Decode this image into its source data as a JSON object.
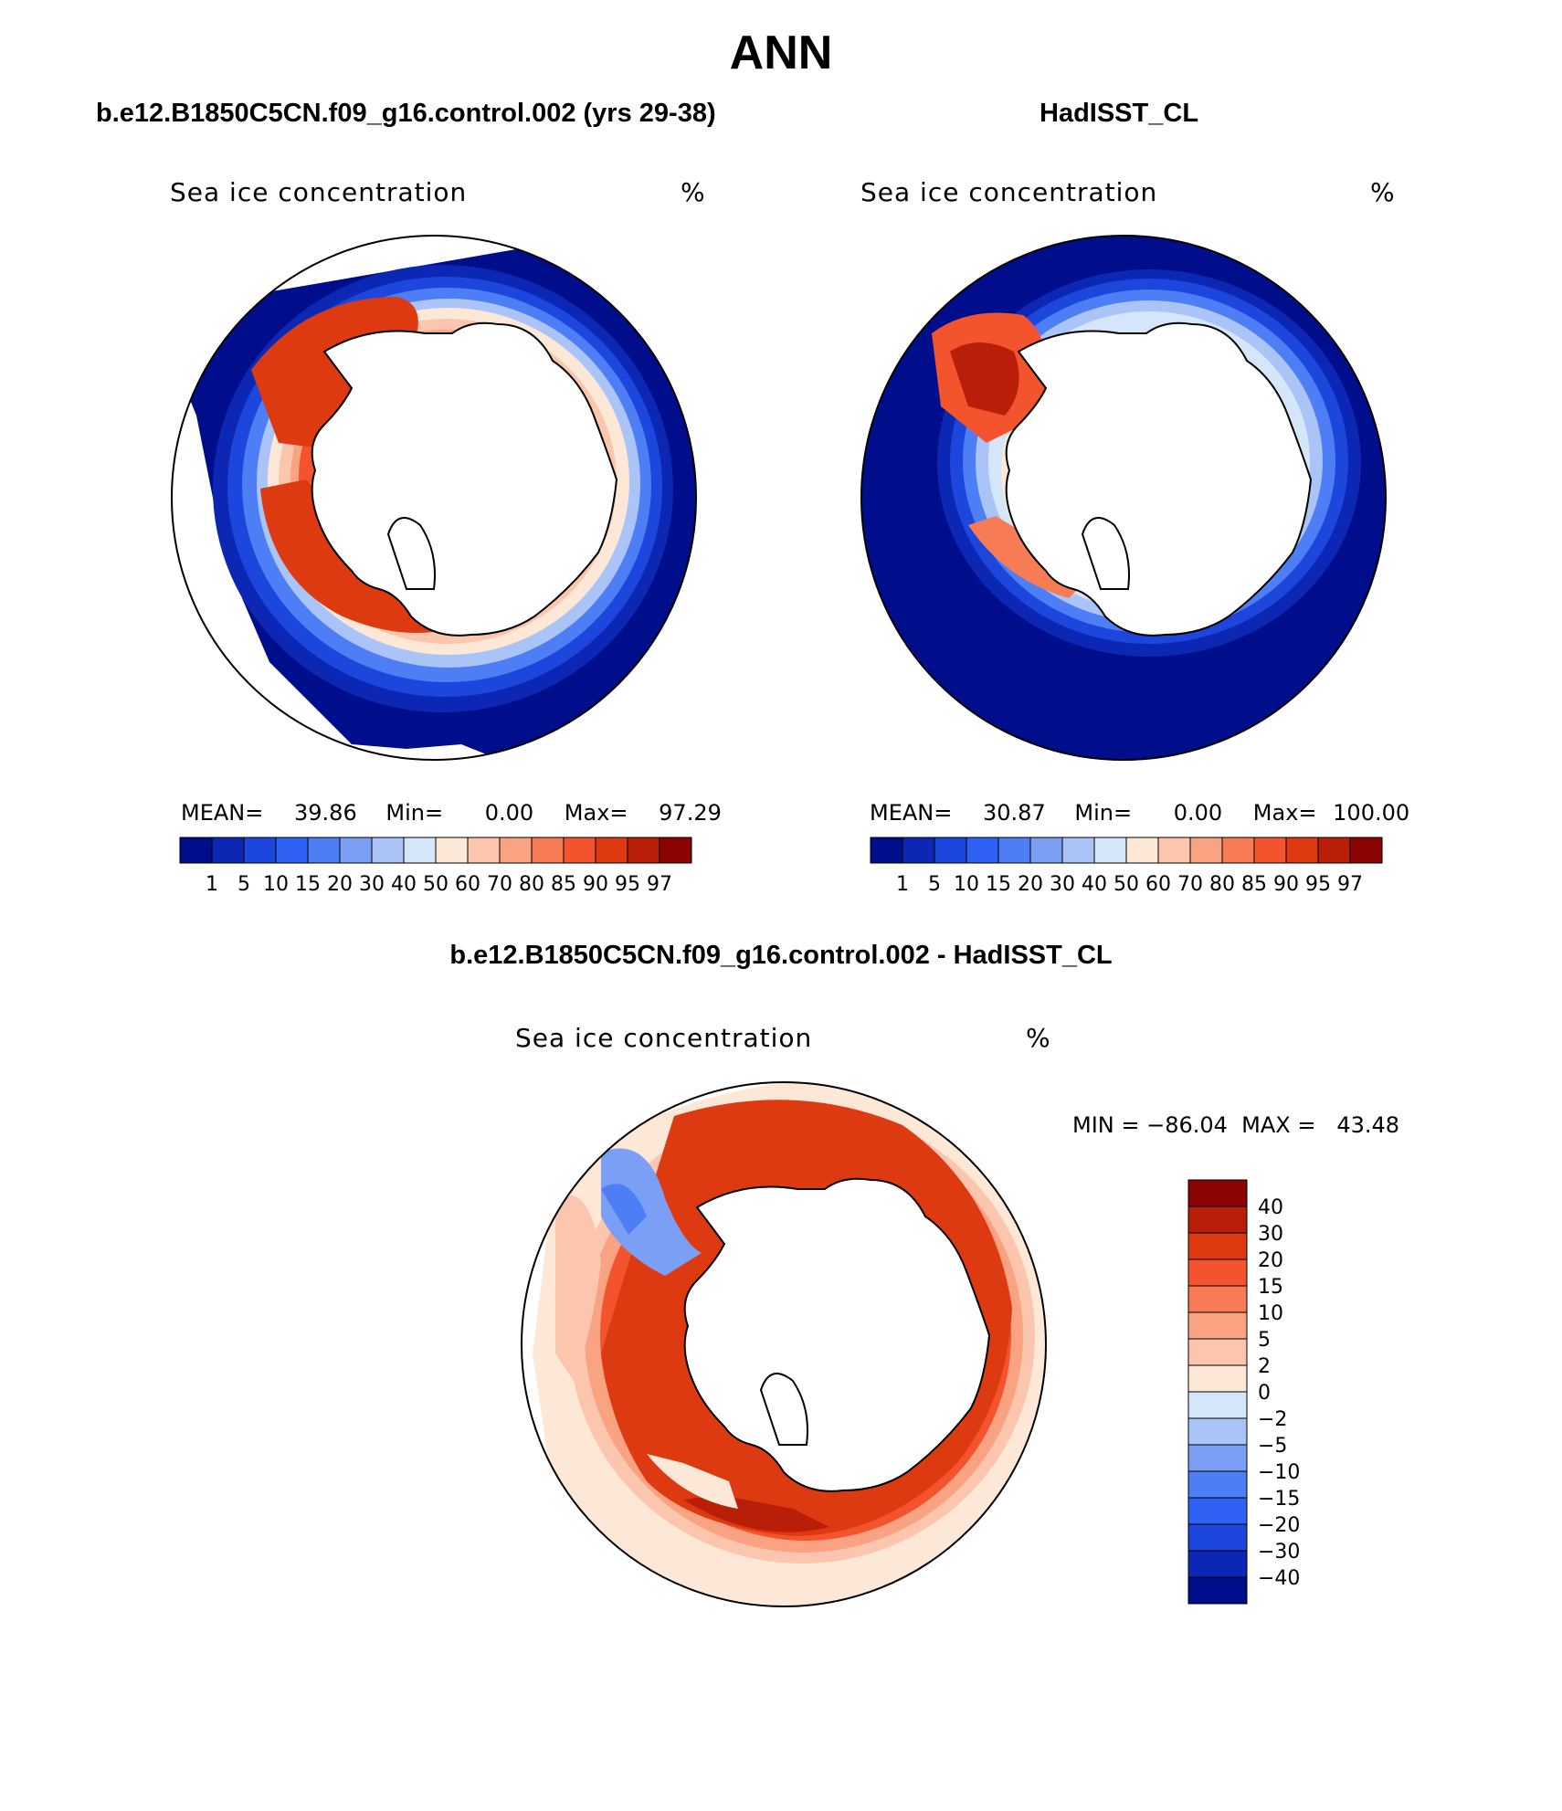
{
  "title": "ANN",
  "panels": [
    {
      "title": "b.e12.B1850C5CN.f09_g16.control.002 (yrs 29-38)",
      "variable": "Sea ice concentration",
      "units": "%",
      "stats": {
        "mean_label": "MEAN=",
        "mean": "39.86",
        "min_label": "Min=",
        "min": "0.00",
        "max_label": "Max=",
        "max": "97.29"
      }
    },
    {
      "title": "HadISST_CL",
      "variable": "Sea ice concentration",
      "units": "%",
      "stats": {
        "mean_label": "MEAN=",
        "mean": "30.87",
        "min_label": "Min=",
        "min": "0.00",
        "max_label": "Max=",
        "max": "100.00"
      }
    }
  ],
  "colorbar_abs": {
    "labels": [
      "1",
      "5",
      "10",
      "15",
      "20",
      "30",
      "40",
      "50",
      "60",
      "70",
      "80",
      "85",
      "90",
      "95",
      "97"
    ],
    "colors": [
      "#000e8c",
      "#0b27b4",
      "#1c46dc",
      "#2f62f4",
      "#4e7ef5",
      "#7c9ff6",
      "#abc4f8",
      "#d6e6fa",
      "#fde7d6",
      "#fbc6ad",
      "#f9a383",
      "#f77c55",
      "#f4542d",
      "#de3a12",
      "#b81e08",
      "#8c0303"
    ]
  },
  "diff_panel": {
    "title": "b.e12.B1850C5CN.f09_g16.control.002 - HadISST_CL",
    "variable": "Sea ice concentration",
    "units": "%",
    "minmax": "MIN = −86.04  MAX =   43.48"
  },
  "colorbar_diff": {
    "labels": [
      "40",
      "30",
      "20",
      "15",
      "10",
      "5",
      "2",
      "0",
      "−2",
      "−5",
      "−10",
      "−15",
      "−20",
      "−30",
      "−40"
    ],
    "colors": [
      "#8c0303",
      "#b81e08",
      "#de3a12",
      "#f4542d",
      "#f77c55",
      "#f9a383",
      "#fbc6ad",
      "#fde7d6",
      "#d6e6fa",
      "#abc4f8",
      "#7c9ff6",
      "#4e7ef5",
      "#2f62f4",
      "#1c46dc",
      "#0b27b4",
      "#000e8c"
    ]
  }
}
